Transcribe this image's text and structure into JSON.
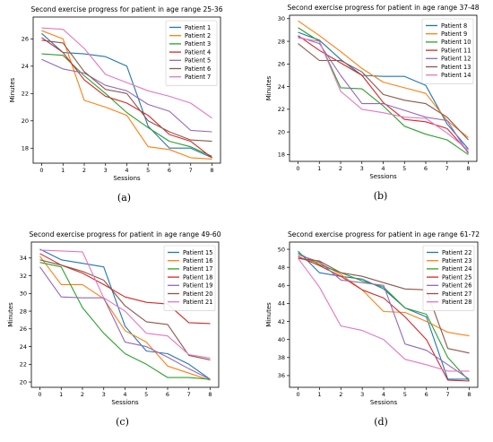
{
  "colors": [
    "#1f77b4",
    "#ff7f0e",
    "#2ca02c",
    "#d62728",
    "#9467bd",
    "#8c564b",
    "#e377c2"
  ],
  "chart_data": [
    {
      "type": "line",
      "panel_caption": "(a)",
      "title": "Second exercise progress for patient in age range 25-36",
      "xlabel": "Sessions",
      "ylabel": "Minutes",
      "x": [
        0,
        1,
        2,
        3,
        4,
        5,
        6,
        7,
        8
      ],
      "xlim": [
        -0.4,
        8.4
      ],
      "ylim": [
        16.9,
        27.6
      ],
      "yticks": [
        18,
        20,
        22,
        24,
        26
      ],
      "legend": "top-right",
      "series": [
        {
          "name": "Patient 1",
          "values": [
            26.4,
            25.0,
            24.9,
            24.7,
            24.0,
            19.6,
            18.0,
            18.0,
            17.3
          ]
        },
        {
          "name": "Patient 2",
          "values": [
            26.6,
            26.0,
            21.5,
            21.0,
            20.4,
            18.1,
            17.9,
            17.3,
            17.2
          ]
        },
        {
          "name": "Patient 3",
          "values": [
            24.9,
            24.8,
            23.3,
            22.0,
            20.6,
            19.5,
            18.5,
            18.1,
            17.4
          ]
        },
        {
          "name": "Patient 4",
          "values": [
            26.1,
            25.0,
            23.0,
            21.8,
            21.3,
            20.4,
            19.0,
            18.5,
            17.3
          ]
        },
        {
          "name": "Patient 5",
          "values": [
            24.5,
            23.8,
            23.5,
            22.6,
            22.2,
            21.2,
            20.7,
            19.3,
            19.2
          ]
        },
        {
          "name": "Patient 6",
          "values": [
            25.9,
            25.7,
            23.6,
            22.3,
            22.0,
            20.0,
            19.2,
            18.6,
            18.5
          ]
        },
        {
          "name": "Patient 7",
          "values": [
            26.8,
            26.7,
            25.3,
            23.4,
            22.8,
            22.2,
            21.8,
            21.3,
            20.2
          ]
        }
      ]
    },
    {
      "type": "line",
      "panel_caption": "(b)",
      "title": "Second exercise progress for patient in age range 37-48",
      "xlabel": "Sessions",
      "ylabel": "Minutes",
      "x": [
        0,
        1,
        2,
        3,
        4,
        5,
        6,
        7,
        8
      ],
      "xlim": [
        -0.4,
        8.4
      ],
      "ylim": [
        17.4,
        30.3
      ],
      "yticks": [
        18,
        20,
        22,
        24,
        26,
        28,
        30
      ],
      "legend": "top-right",
      "series": [
        {
          "name": "Patient 8",
          "values": [
            28.8,
            28.1,
            26.4,
            25.0,
            24.9,
            24.9,
            24.1,
            20.7,
            18.5
          ]
        },
        {
          "name": "Patient 9",
          "values": [
            29.8,
            28.5,
            27.1,
            25.6,
            24.4,
            23.9,
            23.4,
            21.0,
            19.5
          ]
        },
        {
          "name": "Patient 10",
          "values": [
            29.2,
            28.0,
            23.9,
            23.8,
            22.3,
            20.5,
            19.8,
            19.3,
            18.0
          ]
        },
        {
          "name": "Patient 11",
          "values": [
            28.5,
            27.2,
            26.1,
            25.0,
            22.6,
            21.1,
            20.9,
            20.3,
            18.2
          ]
        },
        {
          "name": "Patient 12",
          "values": [
            28.4,
            27.8,
            25.0,
            22.5,
            22.5,
            21.9,
            21.3,
            21.0,
            18.1
          ]
        },
        {
          "name": "Patient 13",
          "values": [
            27.8,
            26.3,
            26.3,
            25.3,
            23.3,
            22.8,
            22.5,
            21.3,
            19.3
          ]
        },
        {
          "name": "Patient 14",
          "values": [
            28.3,
            28.0,
            23.6,
            22.0,
            21.7,
            21.3,
            21.2,
            19.9,
            18.4
          ]
        }
      ]
    },
    {
      "type": "line",
      "panel_caption": "(c)",
      "title": "Second exercise progress for patient in age range 49-60",
      "xlabel": "Sessions",
      "ylabel": "Minutes",
      "x": [
        0,
        1,
        2,
        3,
        4,
        5,
        6,
        7,
        8
      ],
      "xlim": [
        -0.4,
        8.4
      ],
      "ylim": [
        19.4,
        35.8
      ],
      "yticks": [
        20,
        22,
        24,
        26,
        28,
        30,
        32,
        34
      ],
      "legend": "top-right",
      "series": [
        {
          "name": "Patient 15",
          "values": [
            35.0,
            33.8,
            33.4,
            33.0,
            26.3,
            23.5,
            23.2,
            22.0,
            20.3
          ]
        },
        {
          "name": "Patient 16",
          "values": [
            34.2,
            31.0,
            31.0,
            29.4,
            25.8,
            24.5,
            21.8,
            21.0,
            20.2
          ]
        },
        {
          "name": "Patient 17",
          "values": [
            33.5,
            33.0,
            28.4,
            25.5,
            23.2,
            22.0,
            20.5,
            20.5,
            20.3
          ]
        },
        {
          "name": "Patient 18",
          "values": [
            34.5,
            33.2,
            32.3,
            31.0,
            29.6,
            29.0,
            28.8,
            26.7,
            26.6
          ]
        },
        {
          "name": "Patient 19",
          "values": [
            33.0,
            29.6,
            29.5,
            29.5,
            24.5,
            24.0,
            22.8,
            21.5,
            20.3
          ]
        },
        {
          "name": "Patient 20",
          "values": [
            33.8,
            33.2,
            32.5,
            31.5,
            28.6,
            26.8,
            26.5,
            23.0,
            22.5
          ]
        },
        {
          "name": "Patient 21",
          "values": [
            34.9,
            34.8,
            34.7,
            29.5,
            28.0,
            25.5,
            25.2,
            23.1,
            22.7
          ]
        }
      ]
    },
    {
      "type": "line",
      "panel_caption": "(d)",
      "title": "Second exercise progress for patient in age range 61-72",
      "xlabel": "Sessions",
      "ylabel": "Minutes",
      "x": [
        0,
        1,
        2,
        3,
        4,
        5,
        6,
        7,
        8
      ],
      "xlim": [
        -0.4,
        8.4
      ],
      "ylim": [
        34.7,
        50.8
      ],
      "yticks": [
        36,
        38,
        40,
        42,
        44,
        46,
        48,
        50
      ],
      "legend": "top-right",
      "series": [
        {
          "name": "Patient 22",
          "values": [
            49.8,
            47.4,
            47.0,
            46.7,
            45.6,
            43.5,
            42.5,
            35.6,
            35.6
          ]
        },
        {
          "name": "Patient 23",
          "values": [
            49.0,
            48.5,
            47.2,
            45.5,
            43.1,
            43.0,
            42.0,
            40.8,
            40.4
          ]
        },
        {
          "name": "Patient 24",
          "values": [
            49.6,
            48.3,
            47.4,
            46.5,
            45.8,
            43.5,
            42.8,
            38.0,
            35.4
          ]
        },
        {
          "name": "Patient 25",
          "values": [
            49.2,
            48.2,
            47.0,
            45.5,
            44.6,
            42.5,
            40.0,
            35.5,
            35.4
          ]
        },
        {
          "name": "Patient 26",
          "values": [
            49.4,
            48.6,
            46.6,
            46.3,
            46.0,
            39.5,
            38.8,
            37.2,
            35.6
          ]
        },
        {
          "name": "Patient 27",
          "values": [
            49.0,
            48.7,
            47.4,
            47.0,
            46.3,
            45.6,
            45.5,
            39.0,
            38.5
          ]
        },
        {
          "name": "Patient 28",
          "values": [
            49.0,
            45.8,
            41.5,
            41.0,
            40.0,
            37.8,
            37.2,
            36.5,
            36.5
          ]
        }
      ]
    }
  ]
}
